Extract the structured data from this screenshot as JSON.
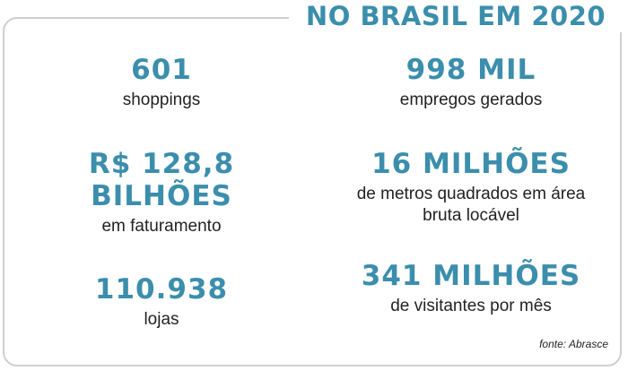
{
  "title": "NO BRASIL EM 2020",
  "colors": {
    "accent": "#3b8eac",
    "text": "#222222",
    "border": "#cfcfcf"
  },
  "stats": [
    {
      "value": "601",
      "label": "shoppings"
    },
    {
      "value_line1": "R$ 128,8",
      "value_line2": "BILHÕES",
      "label": "em faturamento"
    },
    {
      "value": "110.938",
      "label": "lojas"
    },
    {
      "value": "998 MIL",
      "label": "empregos gerados"
    },
    {
      "value": "16 MILHÕES",
      "label_line1": "de metros quadrados em área",
      "label_line2": "bruta locável"
    },
    {
      "value": "341 MILHÕES",
      "label": "de visitantes por mês"
    }
  ],
  "source": "fonte: Abrasce"
}
